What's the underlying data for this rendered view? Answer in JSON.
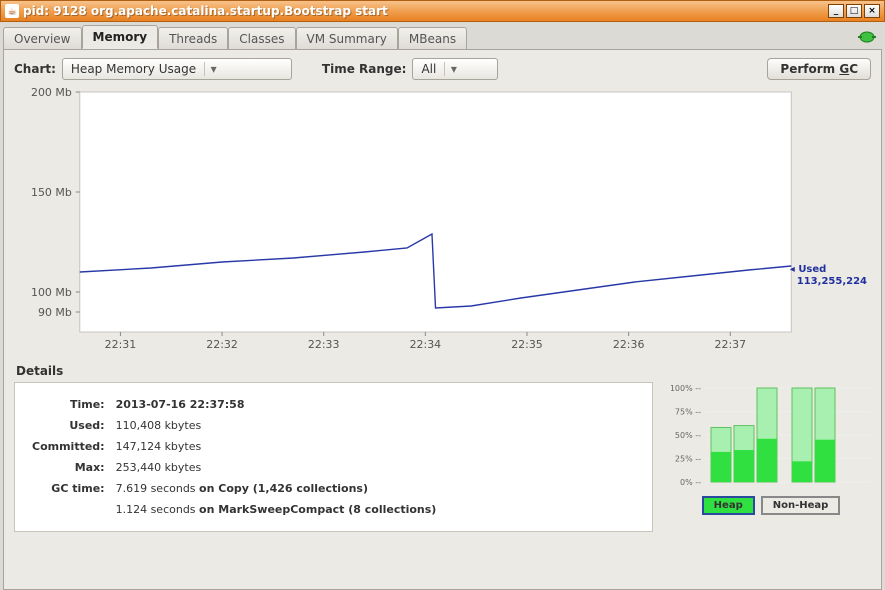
{
  "window": {
    "title": "pid: 9128 org.apache.catalina.startup.Bootstrap start"
  },
  "tabs": [
    "Overview",
    "Memory",
    "Threads",
    "Classes",
    "VM Summary",
    "MBeans"
  ],
  "active_tab": "Memory",
  "toolbar": {
    "chart_label": "Chart:",
    "chart_value": "Heap Memory Usage",
    "range_label": "Time Range:",
    "range_value": "All",
    "gc_button_prefix": "Perform ",
    "gc_button_ul": "G",
    "gc_button_suffix": "C"
  },
  "chart": {
    "type": "line",
    "ylim": [
      80,
      200
    ],
    "yticks": [
      {
        "v": 90,
        "label": "90 Mb"
      },
      {
        "v": 100,
        "label": "100 Mb"
      },
      {
        "v": 150,
        "label": "150 Mb"
      },
      {
        "v": 200,
        "label": "200 Mb"
      }
    ],
    "xticks": [
      "22:31",
      "22:32",
      "22:33",
      "22:34",
      "22:35",
      "22:36",
      "22:37"
    ],
    "line_color": "#2838a8",
    "grid_color": "#d8d6d0",
    "axis_color": "#c8c4bc",
    "bg_color": "#ffffff",
    "used_label": "Used",
    "used_value": "113,255,224",
    "series": [
      {
        "x": 0.0,
        "y": 110
      },
      {
        "x": 0.1,
        "y": 112
      },
      {
        "x": 0.2,
        "y": 115
      },
      {
        "x": 0.3,
        "y": 117
      },
      {
        "x": 0.4,
        "y": 120
      },
      {
        "x": 0.46,
        "y": 122
      },
      {
        "x": 0.49,
        "y": 128
      },
      {
        "x": 0.495,
        "y": 129
      },
      {
        "x": 0.5,
        "y": 92
      },
      {
        "x": 0.55,
        "y": 93
      },
      {
        "x": 0.62,
        "y": 97
      },
      {
        "x": 0.7,
        "y": 101
      },
      {
        "x": 0.78,
        "y": 105
      },
      {
        "x": 0.86,
        "y": 108
      },
      {
        "x": 0.94,
        "y": 111
      },
      {
        "x": 1.0,
        "y": 113
      }
    ]
  },
  "details": {
    "heading": "Details",
    "rows": [
      {
        "k": "Time:",
        "v": "2013-07-16 22:37:58",
        "bold": true
      },
      {
        "k": "Used:",
        "v": "110,408 kbytes"
      },
      {
        "k": "Committed:",
        "v": "147,124 kbytes"
      },
      {
        "k": "Max:",
        "v": "253,440 kbytes"
      }
    ],
    "gc_label": "GC time:",
    "gc_lines": [
      {
        "sec": "7.619",
        "unit": "seconds",
        "rest": "on Copy (1,426 collections)"
      },
      {
        "sec": "1.124",
        "unit": "seconds",
        "rest": "on MarkSweepCompact (8 collections)"
      }
    ]
  },
  "bars": {
    "yticks": [
      "100%",
      "75%",
      "50%",
      "25%",
      "0%"
    ],
    "heap": [
      {
        "committed": 58,
        "used": 32,
        "fill": "#30e040",
        "light": "#a8f0b0"
      },
      {
        "committed": 60,
        "used": 34,
        "fill": "#30e040",
        "light": "#a8f0b0"
      },
      {
        "committed": 100,
        "used": 46,
        "fill": "#30e040",
        "light": "#a8f0b0"
      }
    ],
    "nonheap": [
      {
        "committed": 100,
        "used": 22,
        "fill": "#30e040",
        "light": "#a8f0b0"
      },
      {
        "committed": 100,
        "used": 45,
        "fill": "#30e040",
        "light": "#a8f0b0"
      }
    ],
    "heap_label": "Heap",
    "nonheap_label": "Non-Heap"
  }
}
